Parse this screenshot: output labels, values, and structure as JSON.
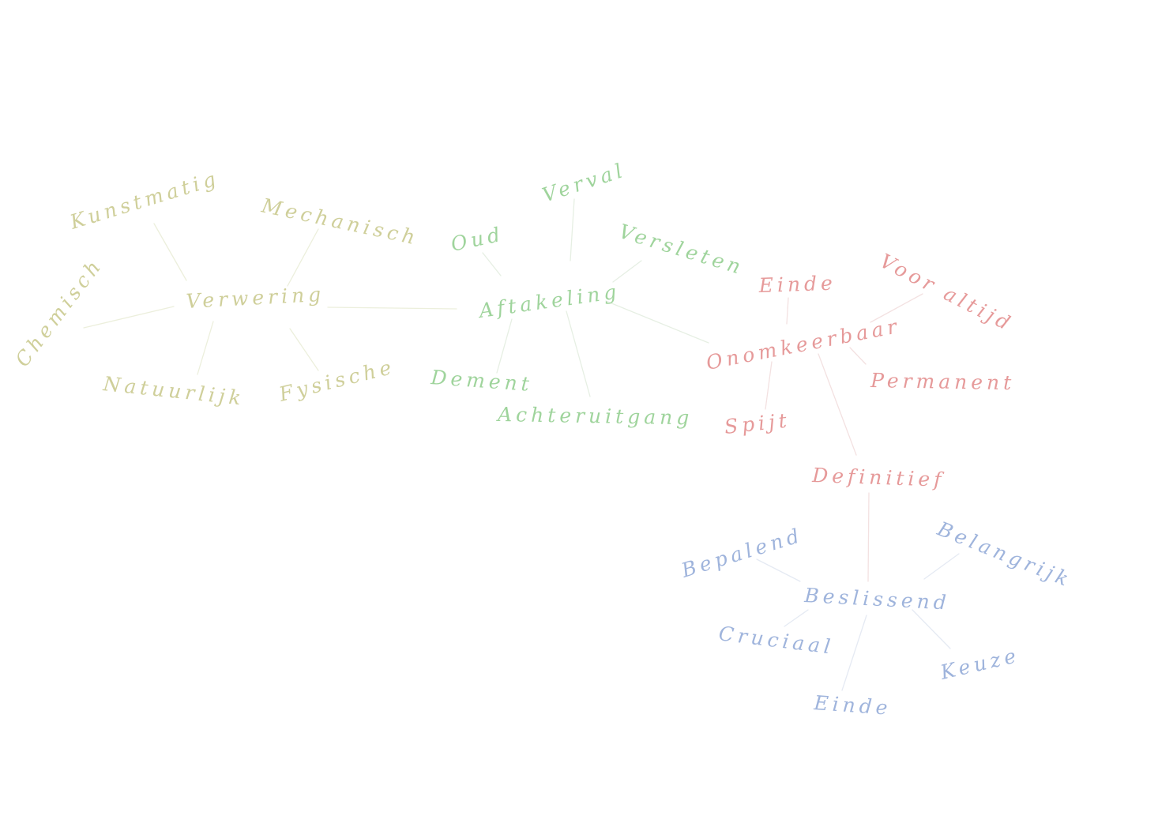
{
  "colors": {
    "verwering": "#cfcf9a",
    "aftakeling": "#9fd49c",
    "onomkeerbaar": "#e69a9a",
    "beslissend": "#9fb4dc",
    "verwering_line": "#ecefdc",
    "aftakeling_line": "#e6efe3",
    "onomkeerbaar_line": "#f3e1e1",
    "beslissend_line": "#e5eaf3"
  },
  "clusters": {
    "verwering": {
      "center": "Verwering",
      "words": [
        "Kunstmatig",
        "Mechanisch",
        "Chemisch",
        "Natuurlijk",
        "Fysische"
      ]
    },
    "aftakeling": {
      "center": "Aftakeling",
      "words": [
        "Oud",
        "Verval",
        "Versleten",
        "Dement",
        "Achteruitgang"
      ]
    },
    "onomkeerbaar": {
      "center": "Onomkeerbaar",
      "words": [
        "Einde",
        "Voor altijd",
        "Permanent",
        "Spijt",
        "Definitief"
      ]
    },
    "beslissend": {
      "center": "Beslissend",
      "words": [
        "Bepalend",
        "Belangrijk",
        "Cruciaal",
        "Einde",
        "Keuze"
      ]
    }
  }
}
